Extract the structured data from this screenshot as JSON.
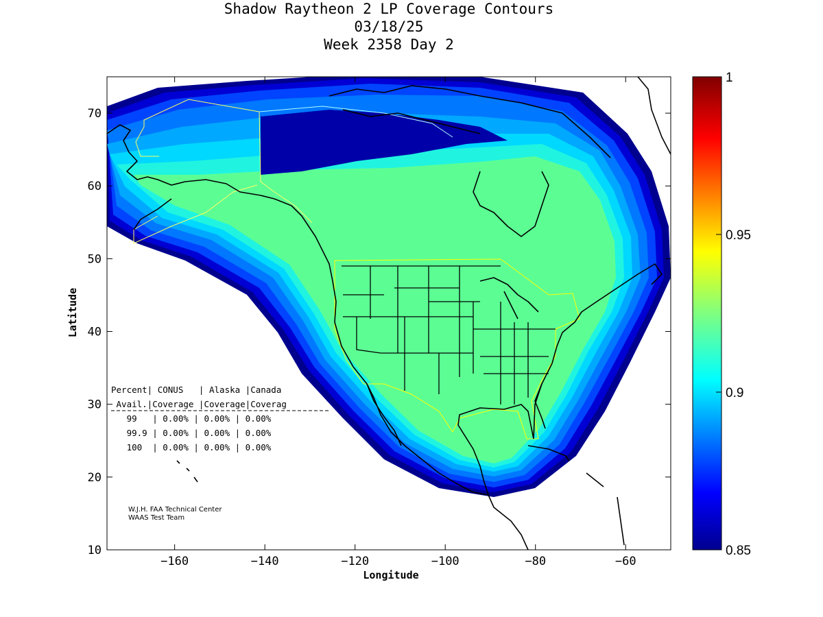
{
  "header": {
    "title": "Shadow Raytheon 2 LP Coverage Contours",
    "date": "03/18/25",
    "week_day": "Week 2358 Day 2"
  },
  "axes": {
    "xlabel": "Longitude",
    "ylabel": "Latitude",
    "xlim": [
      -175,
      -50
    ],
    "ylim": [
      10,
      75
    ],
    "x_ticks": [
      -160,
      -140,
      -120,
      -100,
      -80,
      -60
    ],
    "y_ticks": [
      10,
      20,
      30,
      40,
      50,
      60,
      70
    ]
  },
  "colorbar": {
    "min": 0.85,
    "max": 1,
    "ticks": [
      {
        "value": 1,
        "label": "1"
      },
      {
        "value": 0.95,
        "label": "0.95"
      },
      {
        "value": 0.9,
        "label": "0.9"
      },
      {
        "value": 0.85,
        "label": "0.85"
      }
    ]
  },
  "coverage_table": {
    "header1": "Percent| CONUS   | Alaska |Canada",
    "header2": " Avail.|Coverage |Coverage|Coverag",
    "rows": [
      {
        "avail": "99",
        "conus": "0.00%",
        "alaska": "0.00%",
        "canada": "0.00%"
      },
      {
        "avail": "99.9",
        "conus": "0.00%",
        "alaska": "0.00%",
        "canada": "0.00%"
      },
      {
        "avail": "100",
        "conus": "0.00%",
        "alaska": "0.00%",
        "canada": "0.00%"
      }
    ]
  },
  "credit": {
    "line1": "W.J.H. FAA Technical Center",
    "line2": "WAAS Test Team"
  },
  "colors": {
    "coverage_main": "#5cfe94",
    "contour_levels": [
      "#00007f",
      "#0000a8",
      "#0000d4",
      "#0010ff",
      "#0044ff",
      "#0078ff",
      "#00a8ff",
      "#00d8ff",
      "#20f4e0"
    ]
  }
}
